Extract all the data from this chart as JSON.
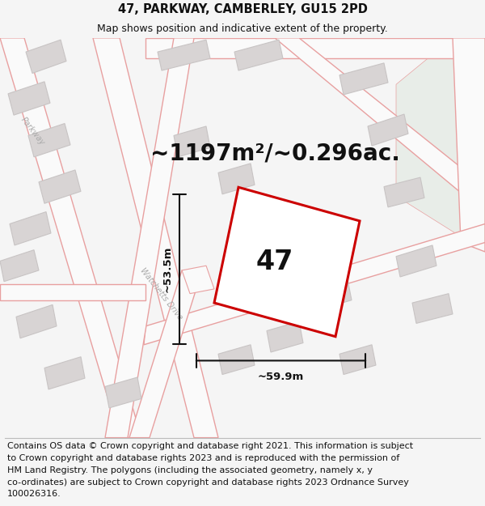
{
  "title_line1": "47, PARKWAY, CAMBERLEY, GU15 2PD",
  "title_line2": "Map shows position and indicative extent of the property.",
  "area_text": "~1197m²/~0.296ac.",
  "property_number": "47",
  "dim_width": "~59.9m",
  "dim_height": "~53.5m",
  "footer_text": "Contains OS data © Crown copyright and database right 2021. This information is subject to Crown copyright and database rights 2023 and is reproduced with the permission of HM Land Registry. The polygons (including the associated geometry, namely x, y co-ordinates) are subject to Crown copyright and database rights 2023 Ordnance Survey 100026316.",
  "bg_color": "#f5f5f5",
  "map_bg": "#f0edec",
  "road_stroke": "#e8a0a0",
  "road_fill": "#fafafa",
  "building_fill": "#d8d4d4",
  "building_edge": "#c8c4c4",
  "green_fill": "#e8ede8",
  "property_color": "#cc0000",
  "dim_color": "#111111",
  "text_color": "#333333",
  "road_label_color": "#aaaaaa",
  "title_fontsize": 10.5,
  "subtitle_fontsize": 9,
  "area_fontsize": 20,
  "number_fontsize": 24,
  "dim_fontsize": 9.5,
  "footer_fontsize": 8,
  "road_label_fontsize": 7
}
